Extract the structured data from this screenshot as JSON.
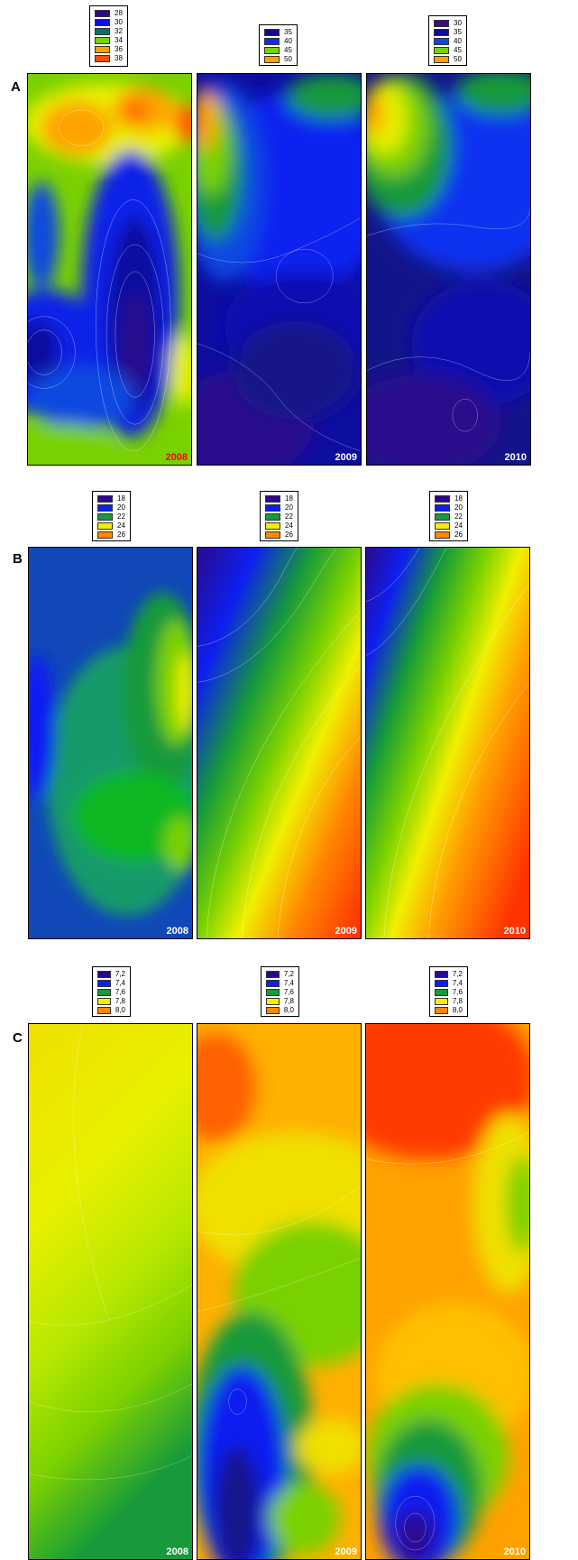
{
  "chart_data": [
    {
      "type": "heatmap",
      "row": "A",
      "panels": [
        {
          "year": "2008",
          "year_color": "#ff0000",
          "legend": [
            "28",
            "30",
            "32",
            "34",
            "36",
            "38"
          ],
          "legend_colors": [
            "#2a0a8c",
            "#0d0df0",
            "#06706a",
            "#7ad100",
            "#ffa200",
            "#ff4d00"
          ]
        },
        {
          "year": "2009",
          "year_color": "#ffffff",
          "legend": [
            "35",
            "40",
            "45",
            "50"
          ],
          "legend_colors": [
            "#140a8a",
            "#1030e0",
            "#7ad100",
            "#ffa200"
          ]
        },
        {
          "year": "2010",
          "year_color": "#ffffff",
          "legend": [
            "30",
            "35",
            "40",
            "45",
            "50"
          ],
          "legend_colors": [
            "#3a0a8a",
            "#0d0d9a",
            "#1048e0",
            "#7ad100",
            "#ffa200"
          ]
        }
      ]
    },
    {
      "type": "heatmap",
      "row": "B",
      "panels": [
        {
          "year": "2008",
          "year_color": "#ffffff",
          "legend": [
            "18",
            "20",
            "22",
            "24",
            "26"
          ],
          "legend_colors": [
            "#2a0a8c",
            "#0d1ff0",
            "#169a3a",
            "#f0f000",
            "#ff8800"
          ]
        },
        {
          "year": "2009",
          "year_color": "#ffffff",
          "legend": [
            "18",
            "20",
            "22",
            "24",
            "26"
          ],
          "legend_colors": [
            "#2a0a8c",
            "#0d1ff0",
            "#169a3a",
            "#f0f000",
            "#ff8800"
          ]
        },
        {
          "year": "2010",
          "year_color": "#ffffff",
          "legend": [
            "18",
            "20",
            "22",
            "24",
            "26"
          ],
          "legend_colors": [
            "#2a0a8c",
            "#0d1ff0",
            "#169a3a",
            "#f0f000",
            "#ff8800"
          ]
        }
      ]
    },
    {
      "type": "heatmap",
      "row": "C",
      "panels": [
        {
          "year": "2008",
          "year_color": "#ffffff",
          "legend": [
            "7,2",
            "7,4",
            "7,6",
            "7,8",
            "8,0"
          ],
          "legend_colors": [
            "#2a0a8c",
            "#0d1ff0",
            "#169a3a",
            "#f0f000",
            "#ff8800"
          ]
        },
        {
          "year": "2009",
          "year_color": "#ffffff",
          "legend": [
            "7,2",
            "7,4",
            "7,6",
            "7,8",
            "8,0"
          ],
          "legend_colors": [
            "#2a0a8c",
            "#0d1ff0",
            "#169a3a",
            "#f0f000",
            "#ff8800"
          ]
        },
        {
          "year": "2010",
          "year_color": "#ffffff",
          "legend": [
            "7,2",
            "7,4",
            "7,6",
            "7,8",
            "8,0"
          ],
          "legend_colors": [
            "#2a0a8c",
            "#0d1ff0",
            "#169a3a",
            "#f0f000",
            "#ff8800"
          ]
        }
      ]
    }
  ]
}
